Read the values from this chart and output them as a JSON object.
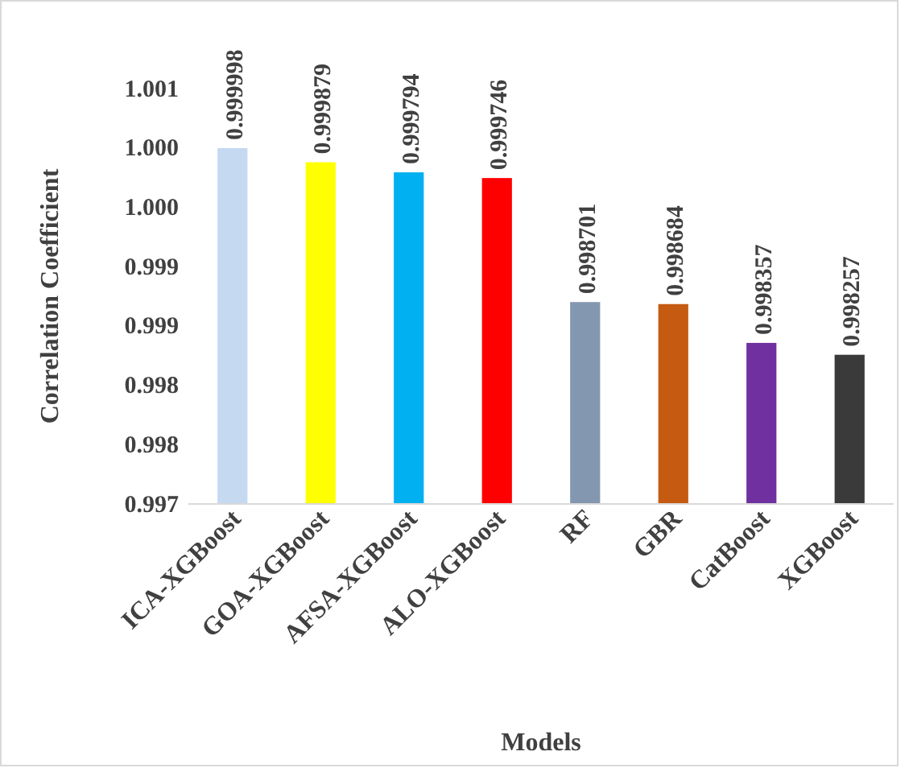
{
  "chart_data": {
    "type": "bar",
    "xlabel": "Models",
    "ylabel": "Correlation Coefficient",
    "categories": [
      "ICA-XGBoost",
      "GOA-XGBoost",
      "AFSA-XGBoost",
      "ALO-XGBoost",
      "RF",
      "GBR",
      "CatBoost",
      "XGBoost"
    ],
    "values": [
      0.999998,
      0.999879,
      0.999794,
      0.999746,
      0.998701,
      0.998684,
      0.998357,
      0.998257
    ],
    "colors": [
      "#c5d9f1",
      "#ffff00",
      "#00b0f0",
      "#ff0000",
      "#8497b0",
      "#c55a11",
      "#7030a0",
      "#3a3a3a"
    ],
    "ylim": [
      0.997,
      1.0005
    ],
    "yticks": [
      0.997,
      {
        "value": 0.9975,
        "label": "0.998"
      },
      0.998,
      {
        "value": 0.9985,
        "label": "0.999"
      },
      0.999,
      {
        "value": 0.9995,
        "label": "1.000"
      },
      {
        "value": 1.0,
        "label": "1.000"
      },
      {
        "value": 1.0005,
        "label": "1.001"
      }
    ],
    "data_labels": true
  }
}
